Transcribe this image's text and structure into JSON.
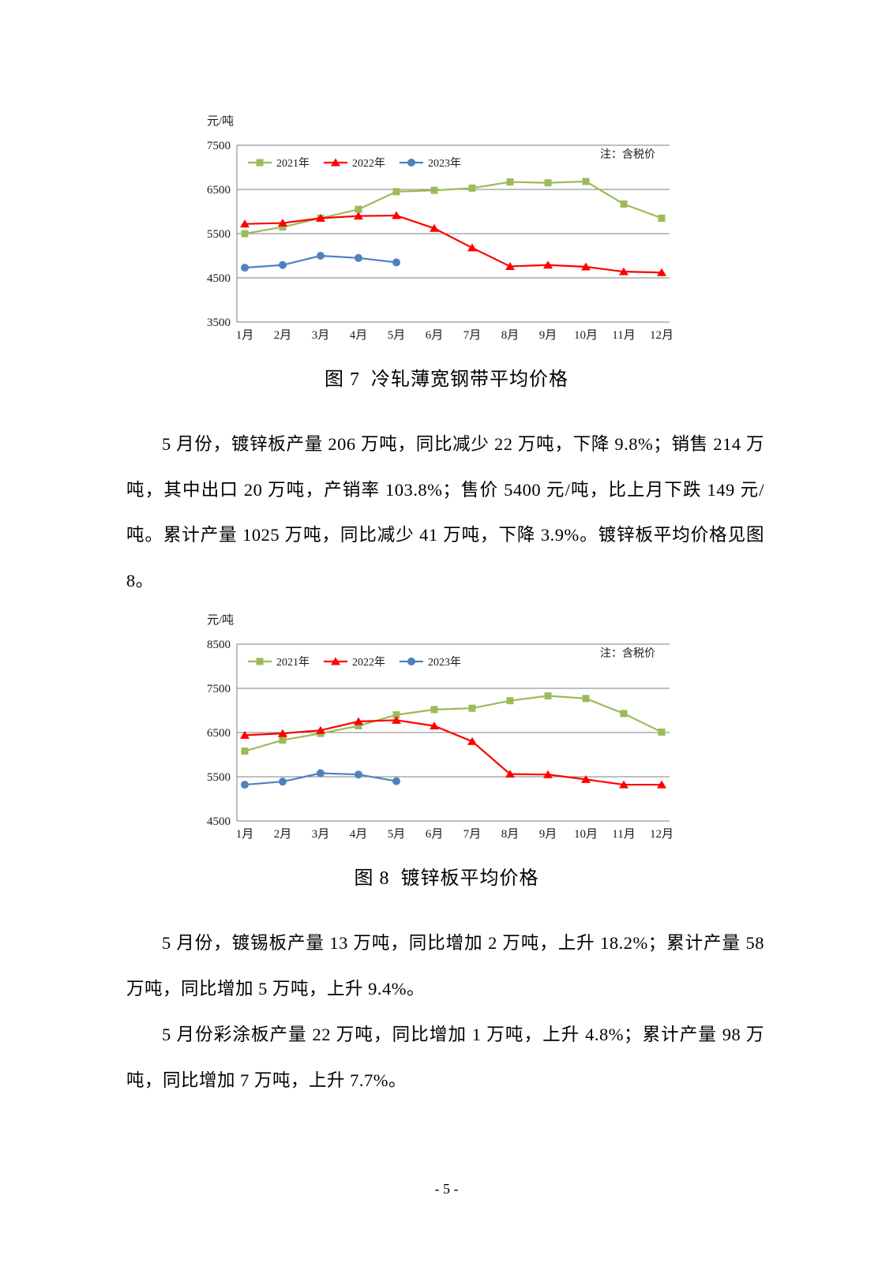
{
  "page": {
    "number": "- 5 -"
  },
  "captions": [
    "图 7  冷轧薄宽钢带平均价格",
    "图 8  镀锌板平均价格"
  ],
  "paragraphs": [
    "5 月份，镀锌板产量 206 万吨，同比减少 22 万吨，下降 9.8%；销售 214 万吨，其中出口 20 万吨，产销率 103.8%；售价 5400 元/吨，比上月下跌 149 元/吨。累计产量 1025 万吨，同比减少 41 万吨，下降 3.9%。镀锌板平均价格见图 8。",
    "5 月份，镀锡板产量 13 万吨，同比增加 2 万吨，上升 18.2%；累计产量 58 万吨，同比增加 5 万吨，上升 9.4%。",
    "5 月份彩涂板产量 22 万吨，同比增加 1 万吨，上升 4.8%；累计产量 98 万吨，同比增加 7 万吨，上升 7.7%。"
  ],
  "chart_data": [
    {
      "type": "line",
      "title": "图 7  冷轧薄宽钢带平均价格",
      "unit_label": "元/吨",
      "note": "注：含税价",
      "ylim": [
        3500,
        7500
      ],
      "ytick_step": 1000,
      "grid": true,
      "legend_position": "top-left-inside",
      "categories": [
        "1月",
        "2月",
        "3月",
        "4月",
        "5月",
        "6月",
        "7月",
        "8月",
        "9月",
        "10月",
        "11月",
        "12月"
      ],
      "series": [
        {
          "name": "2021年",
          "marker": "square",
          "color": "#9BBB59",
          "values": [
            5500,
            5650,
            5850,
            6050,
            6450,
            6480,
            6530,
            6670,
            6650,
            6680,
            6170,
            5850
          ]
        },
        {
          "name": "2022年",
          "marker": "triangle",
          "color": "#FF0000",
          "values": [
            5720,
            5740,
            5850,
            5900,
            5910,
            5620,
            5180,
            4760,
            4790,
            4750,
            4640,
            4620
          ]
        },
        {
          "name": "2023年",
          "marker": "circle",
          "color": "#4F81BD",
          "values": [
            4730,
            4790,
            5000,
            4950,
            4850
          ]
        }
      ]
    },
    {
      "type": "line",
      "title": "图 8  镀锌板平均价格",
      "unit_label": "元/吨",
      "note": "注：含税价",
      "ylim": [
        4500,
        8500
      ],
      "ytick_step": 1000,
      "grid": true,
      "legend_position": "top-left-inside",
      "categories": [
        "1月",
        "2月",
        "3月",
        "4月",
        "5月",
        "6月",
        "7月",
        "8月",
        "9月",
        "10月",
        "11月",
        "12月"
      ],
      "series": [
        {
          "name": "2021年",
          "marker": "square",
          "color": "#9BBB59",
          "values": [
            6080,
            6330,
            6480,
            6650,
            6900,
            7020,
            7050,
            7220,
            7330,
            7270,
            6930,
            6510
          ]
        },
        {
          "name": "2022年",
          "marker": "triangle",
          "color": "#FF0000",
          "values": [
            6440,
            6480,
            6550,
            6750,
            6780,
            6650,
            6300,
            5560,
            5550,
            5440,
            5320,
            5320
          ]
        },
        {
          "name": "2023年",
          "marker": "circle",
          "color": "#4F81BD",
          "values": [
            5320,
            5390,
            5580,
            5550,
            5400
          ]
        }
      ]
    }
  ]
}
